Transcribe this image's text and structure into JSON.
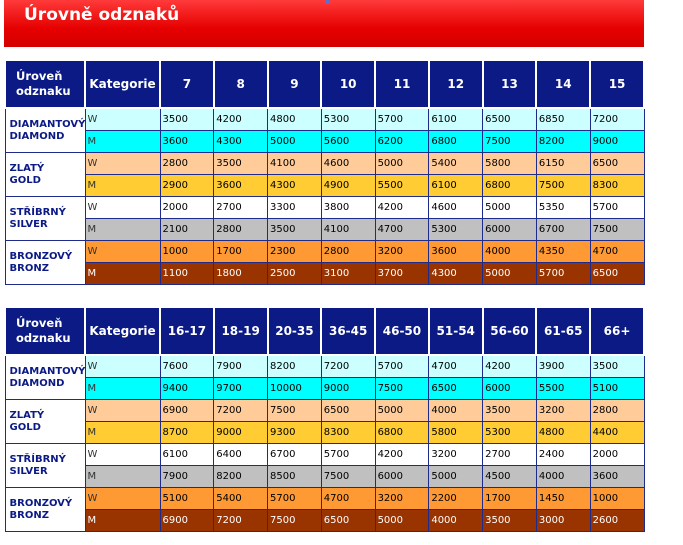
{
  "title": "Úrovně odznaků",
  "tables": [
    {
      "header": {
        "badge": [
          "Úroveň",
          "odznaku"
        ],
        "category": "Kategorie",
        "columns": [
          "7",
          "8",
          "9",
          "10",
          "11",
          "12",
          "13",
          "14",
          "15"
        ]
      },
      "levels": [
        {
          "name": [
            "DIAMANTOVÝ",
            "DIAMOND"
          ],
          "key": "dia",
          "rows": [
            {
              "cat": "W",
              "values": [
                "3500",
                "4200",
                "4800",
                "5300",
                "5700",
                "6100",
                "6500",
                "6850",
                "7200"
              ]
            },
            {
              "cat": "M",
              "values": [
                "3600",
                "4300",
                "5000",
                "5600",
                "6200",
                "6800",
                "7500",
                "8200",
                "9000"
              ]
            }
          ]
        },
        {
          "name": [
            "ZLATÝ",
            "GOLD"
          ],
          "key": "gold",
          "rows": [
            {
              "cat": "W",
              "values": [
                "2800",
                "3500",
                "4100",
                "4600",
                "5000",
                "5400",
                "5800",
                "6150",
                "6500"
              ]
            },
            {
              "cat": "M",
              "values": [
                "2900",
                "3600",
                "4300",
                "4900",
                "5500",
                "6100",
                "6800",
                "7500",
                "8300"
              ]
            }
          ]
        },
        {
          "name": [
            "STŘÍBRNÝ",
            "SILVER"
          ],
          "key": "silv",
          "rows": [
            {
              "cat": "W",
              "values": [
                "2000",
                "2700",
                "3300",
                "3800",
                "4200",
                "4600",
                "5000",
                "5350",
                "5700"
              ]
            },
            {
              "cat": "M",
              "values": [
                "2100",
                "2800",
                "3500",
                "4100",
                "4700",
                "5300",
                "6000",
                "6700",
                "7500"
              ]
            }
          ]
        },
        {
          "name": [
            "BRONZOVÝ",
            "BRONZ"
          ],
          "key": "bron",
          "rows": [
            {
              "cat": "W",
              "values": [
                "1000",
                "1700",
                "2300",
                "2800",
                "3200",
                "3600",
                "4000",
                "4350",
                "4700"
              ]
            },
            {
              "cat": "M",
              "values": [
                "1100",
                "1800",
                "2500",
                "3100",
                "3700",
                "4300",
                "5000",
                "5700",
                "6500"
              ]
            }
          ]
        }
      ]
    },
    {
      "header": {
        "badge": [
          "Úroveň",
          "odznaku"
        ],
        "category": "Kategorie",
        "columns": [
          "16-17",
          "18-19",
          "20-35",
          "36-45",
          "46-50",
          "51-54",
          "56-60",
          "61-65",
          "66+"
        ]
      },
      "levels": [
        {
          "name": [
            "DIAMANTOVÝ",
            "DIAMOND"
          ],
          "key": "dia",
          "rows": [
            {
              "cat": "W",
              "values": [
                "7600",
                "7900",
                "8200",
                "7200",
                "5700",
                "4700",
                "4200",
                "3900",
                "3500"
              ]
            },
            {
              "cat": "M",
              "values": [
                "9400",
                "9700",
                "10000",
                "9000",
                "7500",
                "6500",
                "6000",
                "5500",
                "5100"
              ]
            }
          ]
        },
        {
          "name": [
            "ZLATÝ",
            "GOLD"
          ],
          "key": "gold",
          "rows": [
            {
              "cat": "W",
              "values": [
                "6900",
                "7200",
                "7500",
                "6500",
                "5000",
                "4000",
                "3500",
                "3200",
                "2800"
              ]
            },
            {
              "cat": "M",
              "values": [
                "8700",
                "9000",
                "9300",
                "8300",
                "6800",
                "5800",
                "5300",
                "4800",
                "4400"
              ]
            }
          ]
        },
        {
          "name": [
            "STŘÍBRNÝ",
            "SILVER"
          ],
          "key": "silv",
          "rows": [
            {
              "cat": "W",
              "values": [
                "6100",
                "6400",
                "6700",
                "5700",
                "4200",
                "3200",
                "2700",
                "2400",
                "2000"
              ]
            },
            {
              "cat": "M",
              "values": [
                "7900",
                "8200",
                "8500",
                "7500",
                "6000",
                "5000",
                "4500",
                "4000",
                "3600"
              ]
            }
          ]
        },
        {
          "name": [
            "BRONZOVÝ",
            "BRONZ"
          ],
          "key": "bron",
          "rows": [
            {
              "cat": "W",
              "values": [
                "5100",
                "5400",
                "5700",
                "4700",
                "3200",
                "2200",
                "1700",
                "1450",
                "1000"
              ]
            },
            {
              "cat": "M",
              "values": [
                "6900",
                "7200",
                "7500",
                "6500",
                "5000",
                "4000",
                "3500",
                "3000",
                "2600"
              ]
            }
          ]
        }
      ]
    }
  ]
}
